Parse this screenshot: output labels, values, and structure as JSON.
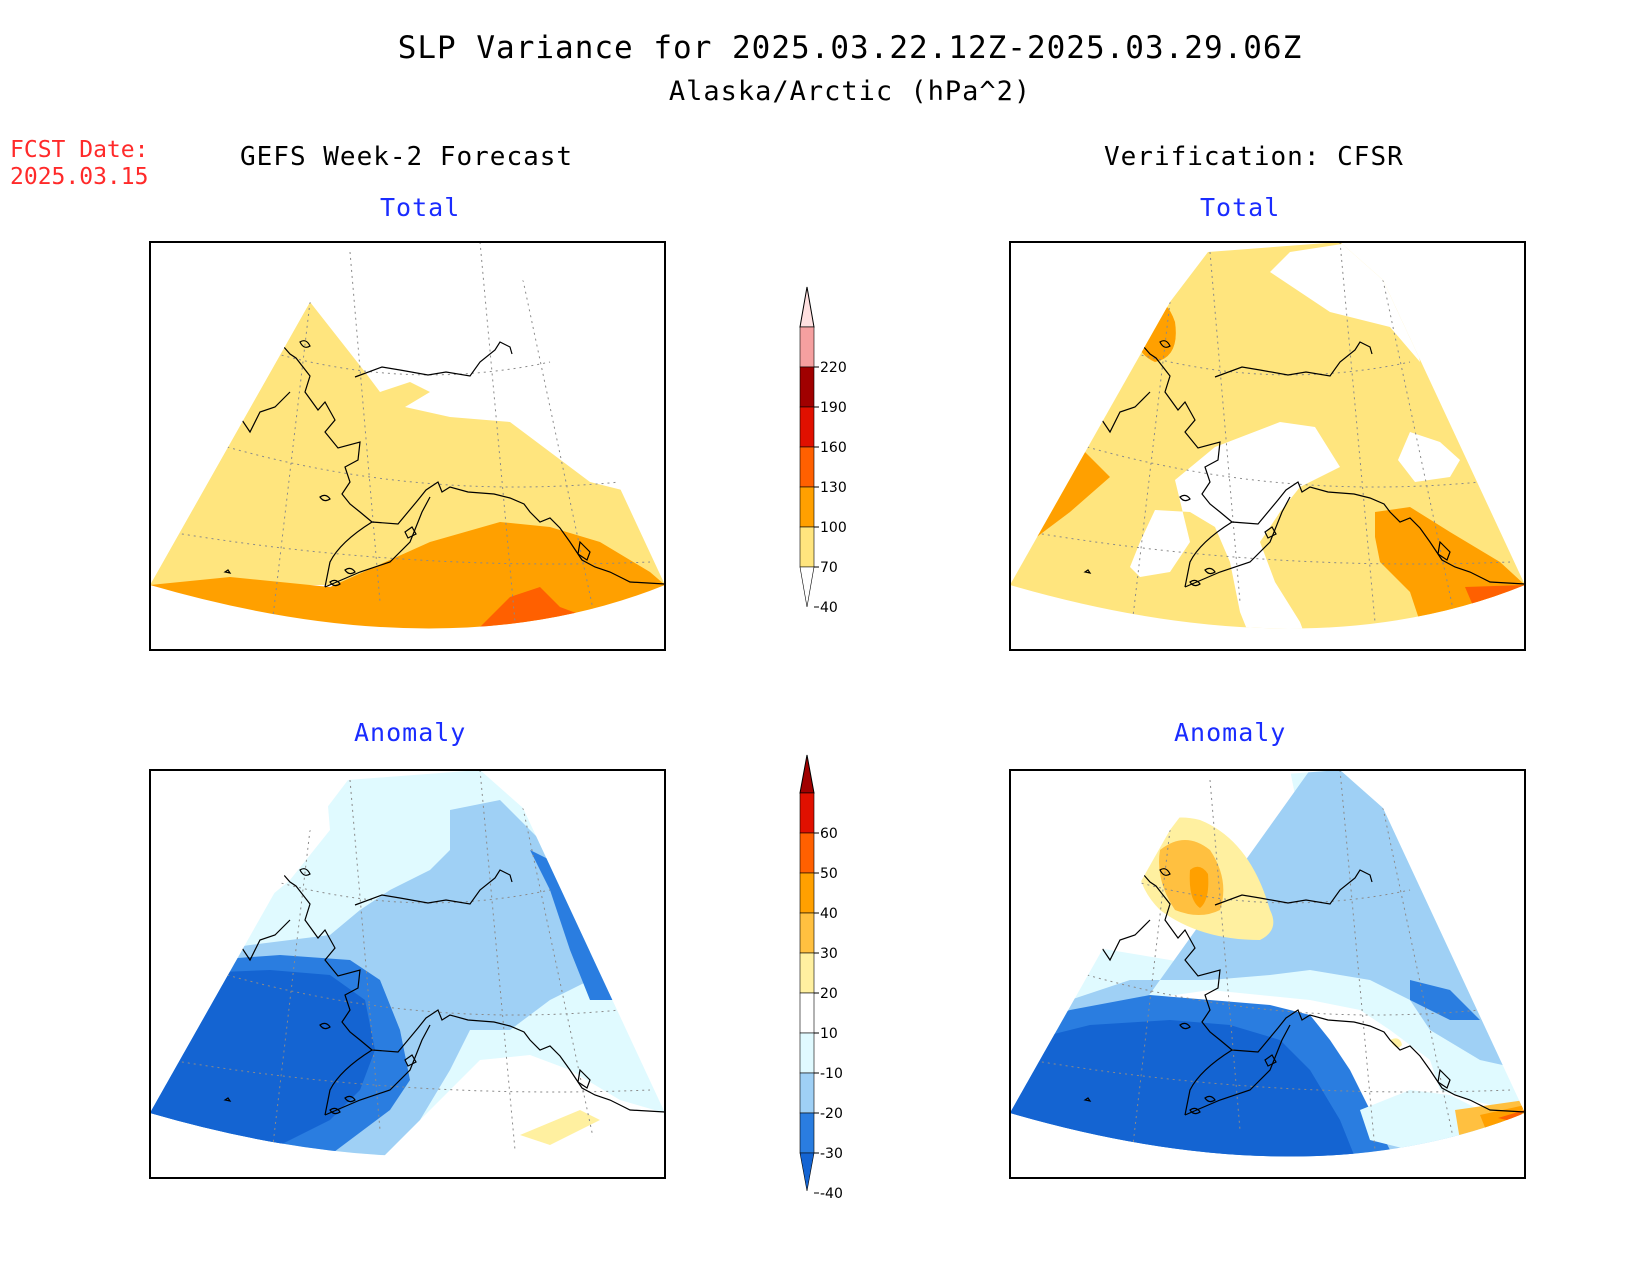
{
  "title": "SLP Variance for 2025.03.22.12Z-2025.03.29.06Z",
  "subtitle": "Alaska/Arctic (hPa^2)",
  "fcst_date": {
    "label": "FCST Date:",
    "value": "2025.03.15"
  },
  "columns": {
    "left": "GEFS Week-2 Forecast",
    "right": "Verification: CFSR"
  },
  "panels": {
    "forecast_total": "Total",
    "verification_total": "Total",
    "forecast_anomaly": "Anomaly",
    "verification_anomaly": "Anomaly"
  },
  "colorbars": {
    "total": {
      "labels": [
        "220",
        "190",
        "160",
        "130",
        "100",
        "70",
        "40"
      ],
      "colors": [
        "#ffe0e0",
        "#f5a0a0",
        "#a00000",
        "#e01000",
        "#ff6000",
        "#ffa000",
        "#ffe57e"
      ]
    },
    "anomaly": {
      "labels": [
        "60",
        "50",
        "40",
        "30",
        "20",
        "10",
        "-10",
        "-20",
        "-30",
        "-40"
      ],
      "colors": [
        "#a00000",
        "#e01000",
        "#ff6000",
        "#ffa000",
        "#ffc040",
        "#fff0a0",
        "#ffffff",
        "#e0faff",
        "#9fd0f5",
        "#2a7de0",
        "#1464d2"
      ]
    }
  },
  "colors": {
    "coast": "#000000",
    "grid": "#888888",
    "title_accent": "#1a2cff",
    "fcst_accent": "#ff2a2a"
  }
}
